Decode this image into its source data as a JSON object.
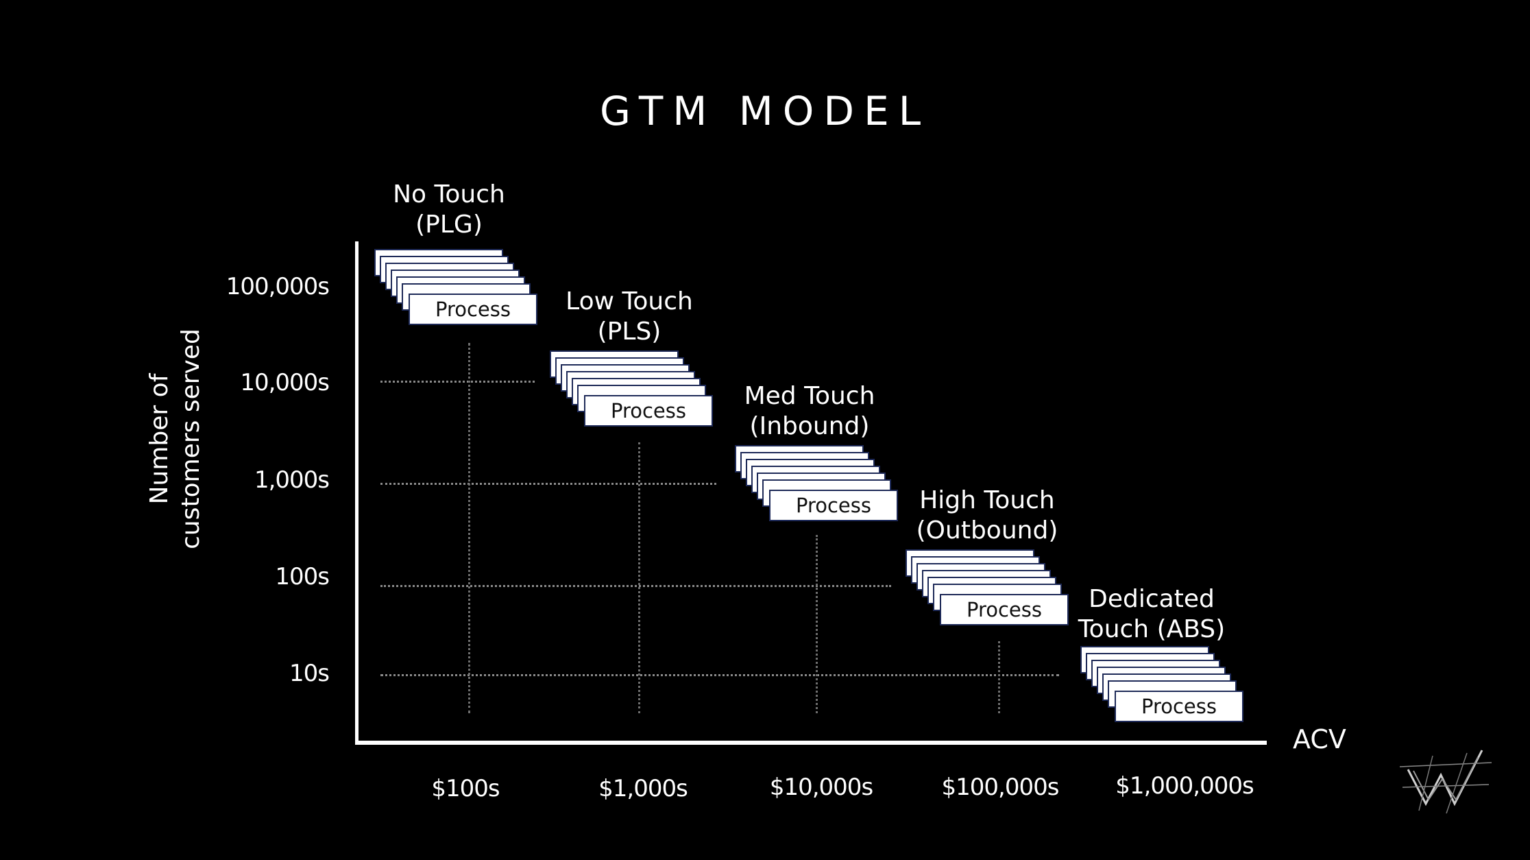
{
  "title": "GTM MODEL",
  "y_axis": {
    "label_line1": "Number of",
    "label_line2": "customers served",
    "ticks": [
      "100,000s",
      "10,000s",
      "1,000s",
      "100s",
      "10s"
    ]
  },
  "x_axis": {
    "label": "ACV",
    "ticks": [
      "$100s",
      "$1,000s",
      "$10,000s",
      "$100,000s",
      "$1,000,000s"
    ]
  },
  "segments": [
    {
      "line1": "No Touch",
      "line2": "(PLG)",
      "box_label": "Process"
    },
    {
      "line1": "Low Touch",
      "line2": "(PLS)",
      "box_label": "Process"
    },
    {
      "line1": "Med Touch",
      "line2": "(Inbound)",
      "box_label": "Process"
    },
    {
      "line1": "High Touch",
      "line2": "(Outbound)",
      "box_label": "Process"
    },
    {
      "line1": "Dedicated",
      "line2": "Touch (ABS)",
      "box_label": "Process"
    }
  ],
  "colors": {
    "background": "#000000",
    "box_border": "#1e2a58",
    "grid": "#8a8a8a"
  },
  "logo": "w-logo-icon"
}
